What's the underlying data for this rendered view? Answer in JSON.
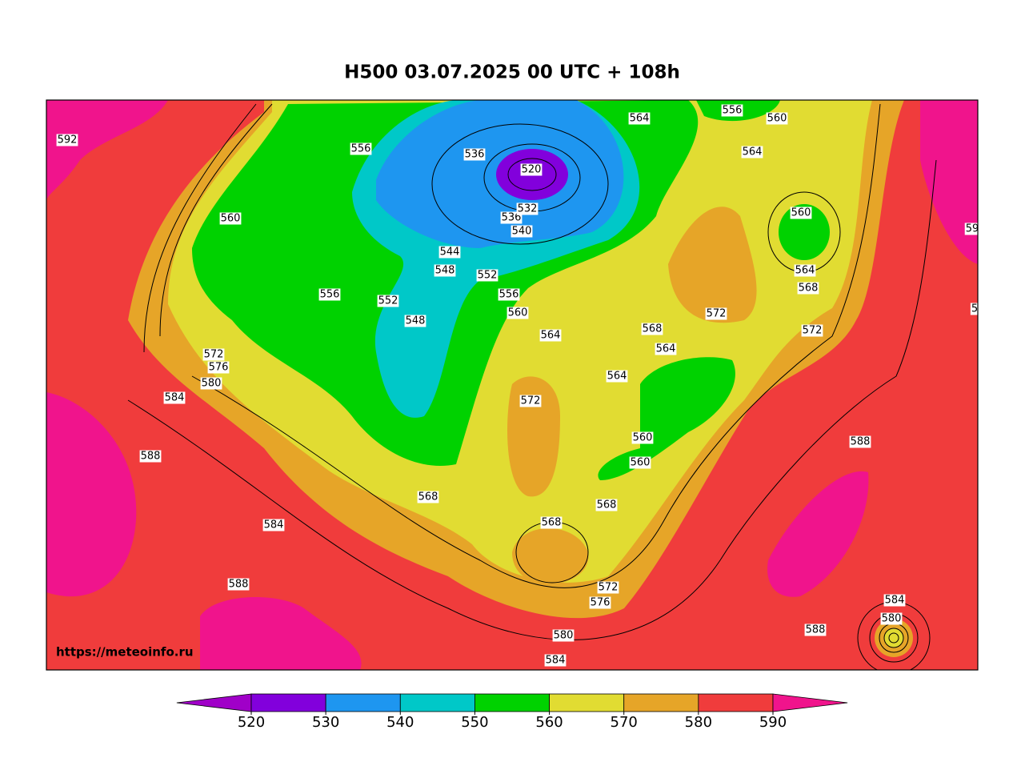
{
  "title": "H500  03.07.2025 00 UTC + 108h",
  "watermark": "https://meteoinfo.ru",
  "contour_labels": [
    "592",
    "556",
    "536",
    "520",
    "564",
    "556",
    "560",
    "564",
    "560",
    "560",
    "536",
    "532",
    "540",
    "544",
    "548",
    "552",
    "556",
    "556",
    "552",
    "548",
    "560",
    "564",
    "568",
    "572",
    "572",
    "564",
    "564",
    "568",
    "564",
    "572",
    "576",
    "580",
    "584",
    "572",
    "560",
    "560",
    "588",
    "568",
    "568",
    "568",
    "584",
    "588",
    "572",
    "576",
    "580",
    "584",
    "588",
    "584",
    "580",
    "588",
    "59",
    "5"
  ],
  "colorbar": {
    "ticks": [
      520,
      530,
      540,
      550,
      560,
      570,
      580,
      590
    ],
    "colors": [
      "#a000c8",
      "#8200dc",
      "#1e96f0",
      "#00c8c8",
      "#00d200",
      "#e1dc32",
      "#e6a528",
      "#f03c3c",
      "#f0148c"
    ]
  }
}
